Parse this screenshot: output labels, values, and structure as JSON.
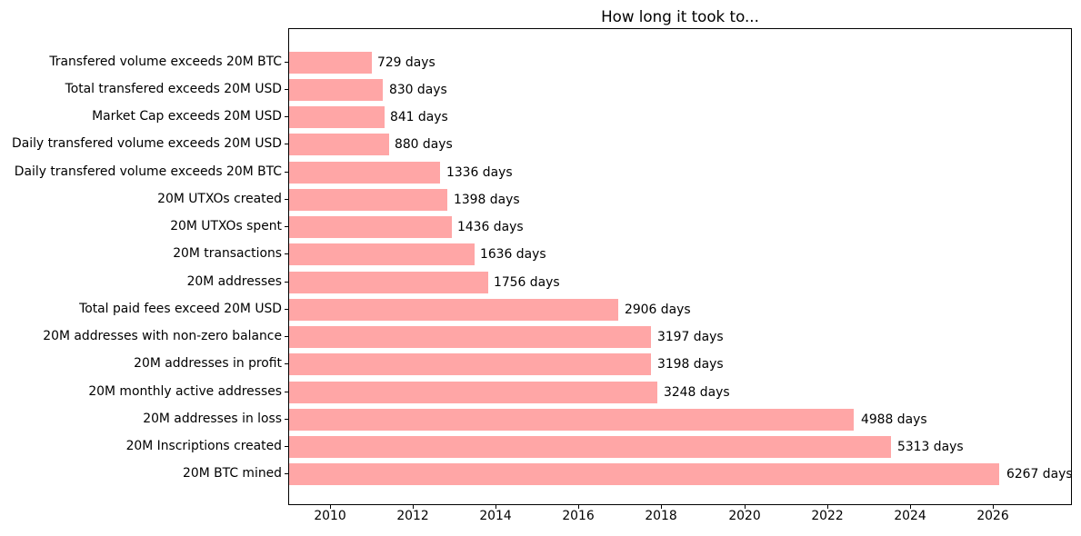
{
  "title": "How long it took to...",
  "colors": {
    "bar": "#ffa6a6",
    "axis": "#000000",
    "text": "#000000",
    "background": "#ffffff"
  },
  "chart_data": {
    "type": "bar",
    "orientation": "horizontal",
    "title": "How long it took to...",
    "xlabel": "",
    "ylabel": "",
    "grid": false,
    "legend": false,
    "categories": [
      "Transfered volume exceeds 20M BTC",
      "Total transfered exceeds 20M USD",
      "Market Cap exceeds 20M USD",
      "Daily transfered volume exceeds 20M USD",
      "Daily transfered volume exceeds 20M BTC",
      "20M UTXOs created",
      "20M UTXOs spent",
      "20M transactions",
      "20M addresses",
      "Total paid fees exceed 20M USD",
      "20M addresses with non-zero balance",
      "20M addresses in profit",
      "20M monthly active addresses",
      "20M addresses in loss",
      "20M Inscriptions created",
      "20M BTC mined"
    ],
    "values": [
      729,
      830,
      841,
      880,
      1336,
      1398,
      1436,
      1636,
      1756,
      2906,
      3197,
      3198,
      3248,
      4988,
      5313,
      6267
    ],
    "value_labels": [
      "729 days",
      "830 days",
      "841 days",
      "880 days",
      "1336 days",
      "1398 days",
      "1436 days",
      "1636 days",
      "1756 days",
      "2906 days",
      "3197 days",
      "3198 days",
      "3248 days",
      "4988 days",
      "5313 days",
      "6267 days"
    ],
    "unit": "days",
    "bar_color": "#ffa6a6",
    "x_ticks": [
      "2010",
      "2012",
      "2014",
      "2016",
      "2018",
      "2020",
      "2022",
      "2024",
      "2026"
    ],
    "x_axis": {
      "min_year": 2009.0,
      "max_year": 2027.9
    },
    "days_per_year": 365.25
  }
}
